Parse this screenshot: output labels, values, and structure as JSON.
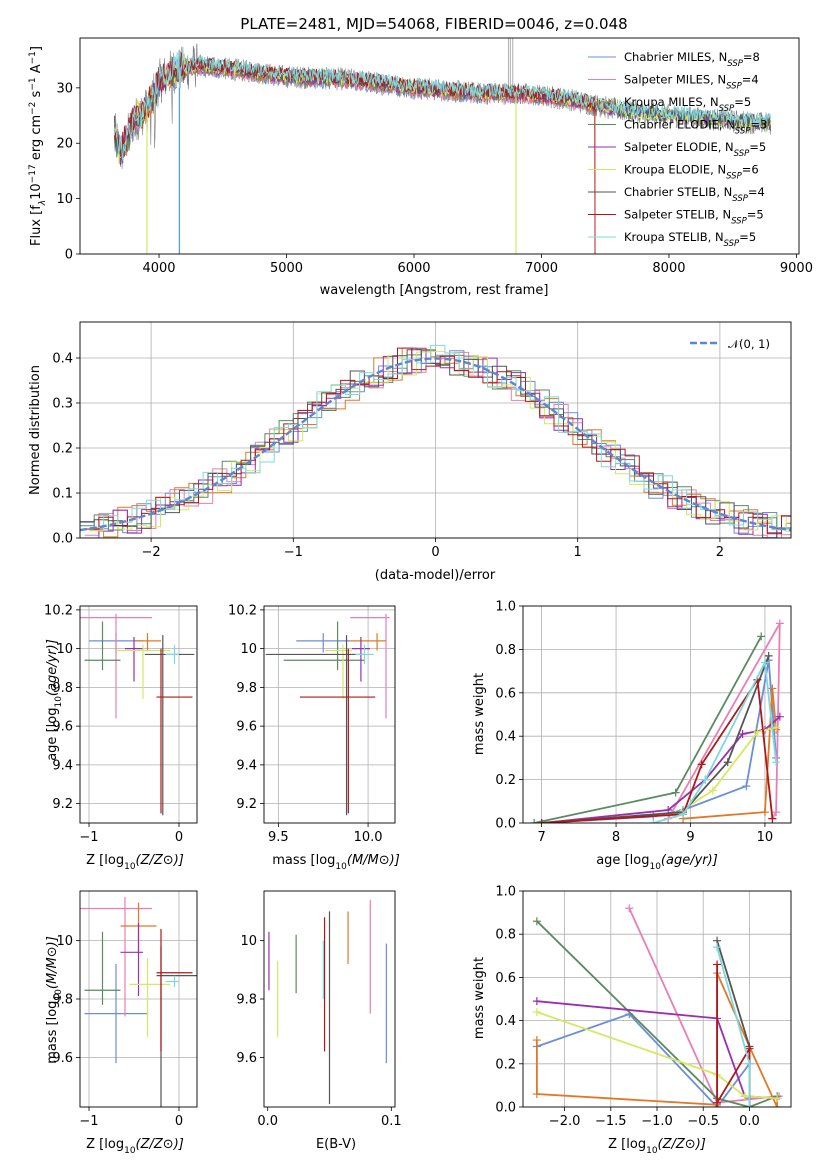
{
  "colors": {
    "Chabrier MILES": "#6a8fd8",
    "Salpeter MILES": "#e87fb4",
    "Kroupa MILES": "#e07828",
    "Chabrier ELODIE": "#5a8a60",
    "Salpeter ELODIE": "#9a2fb0",
    "Kroupa ELODIE": "#d6e860",
    "Chabrier STELIB": "#555555",
    "Salpeter STELIB": "#b01818",
    "Kroupa STELIB": "#7ed8e0"
  },
  "chart_data": [
    {
      "id": "spectrum",
      "type": "line",
      "title": "PLATE=2481, MJD=54068, FIBERID=0046, z=0.048",
      "xlabel": "wavelength [Angstrom, rest frame]",
      "ylabel_parts": [
        "Flux [f",
        "λ",
        "10",
        "−17",
        " erg cm",
        "−2",
        " s",
        "−1",
        " A",
        "−1",
        "]"
      ],
      "xlim": [
        3380,
        9020
      ],
      "ylim": [
        0,
        39
      ],
      "xticks": [
        4000,
        5000,
        6000,
        7000,
        8000,
        9000
      ],
      "yticks": [
        0,
        10,
        20,
        30
      ],
      "legend_location": "upper right",
      "legend": [
        {
          "name": "Chabrier MILES",
          "n": "8"
        },
        {
          "name": "Salpeter MILES",
          "n": "4"
        },
        {
          "name": "Kroupa MILES",
          "n": "5"
        },
        {
          "name": "Chabrier ELODIE",
          "n": "3"
        },
        {
          "name": "Salpeter ELODIE",
          "n": "5"
        },
        {
          "name": "Kroupa ELODIE",
          "n": "6"
        },
        {
          "name": "Chabrier STELIB",
          "n": "4"
        },
        {
          "name": "Salpeter STELIB",
          "n": "5"
        },
        {
          "name": "Kroupa STELIB",
          "n": "5"
        }
      ],
      "legend_n_label": "N",
      "legend_n_sub": "SSP",
      "continuum": {
        "x": [
          3650,
          3700,
          3800,
          3900,
          4000,
          4100,
          4200,
          4300,
          4500,
          4700,
          5000,
          5500,
          6000,
          6500,
          6800,
          7000,
          7200,
          7400,
          7600,
          8000,
          8500,
          8800
        ],
        "y": [
          22,
          18,
          24,
          26,
          31,
          33,
          33.5,
          34,
          33.5,
          33,
          32,
          31.5,
          30,
          29,
          29,
          28.5,
          28,
          27,
          26,
          25,
          24,
          23.5
        ]
      }
    },
    {
      "id": "residuals",
      "type": "histogram",
      "xlabel": "(data-model)/error",
      "ylabel": "Normed distribution",
      "xlim": [
        -2.5,
        2.5
      ],
      "ylim": [
        0,
        0.48
      ],
      "xticks": [
        -2,
        -1,
        0,
        1,
        2
      ],
      "xticklabels": [
        "−2",
        "−1",
        "0",
        "1",
        "2"
      ],
      "yticks": [
        0.0,
        0.1,
        0.2,
        0.3,
        0.4
      ],
      "yticklabels": [
        "0.0",
        "0.1",
        "0.2",
        "0.3",
        "0.4"
      ],
      "grid": true,
      "legend_location": "upper right",
      "reference_curve": {
        "label": "𝒩(0, 1)",
        "mean": 0,
        "sigma": 1,
        "style": "dashed",
        "color": "#5b86d6"
      }
    },
    {
      "id": "age-vs-Z",
      "type": "errorbar",
      "xlabel": "Z [log10(Z/Z⊙)]",
      "ylabel": "age  [log10(age/yr)]",
      "xlim": [
        -1.1,
        0.2
      ],
      "ylim": [
        9.1,
        10.22
      ],
      "xticks": [
        -1,
        0
      ],
      "xticklabels": [
        "−1",
        "0"
      ],
      "yticks": [
        9.2,
        9.4,
        9.6,
        9.8,
        10.0,
        10.2
      ],
      "grid": true,
      "points": [
        {
          "model": "Chabrier MILES",
          "x": -0.7,
          "xerr": [
            0.3,
            0.3
          ],
          "y": 10.04,
          "yerr": [
            0.06,
            0.04
          ]
        },
        {
          "model": "Salpeter MILES",
          "x": -0.7,
          "xerr": [
            0.4,
            0.4
          ],
          "y": 10.16,
          "yerr": [
            0.52,
            0.02
          ]
        },
        {
          "model": "Kroupa MILES",
          "x": -0.35,
          "xerr": [
            0.15,
            0.15
          ],
          "y": 10.04,
          "yerr": [
            0.05,
            0.04
          ]
        },
        {
          "model": "Chabrier ELODIE",
          "x": -0.85,
          "xerr": [
            0.2,
            0.2
          ],
          "y": 9.94,
          "yerr": [
            0.05,
            0.2
          ]
        },
        {
          "model": "Salpeter ELODIE",
          "x": -0.5,
          "xerr": [
            0.1,
            0.1
          ],
          "y": 10.0,
          "yerr": [
            0.17,
            0.06
          ]
        },
        {
          "model": "Kroupa ELODIE",
          "x": -0.4,
          "xerr": [
            0.3,
            0.3
          ],
          "y": 9.99,
          "yerr": [
            0.25,
            0.03
          ]
        },
        {
          "model": "Chabrier STELIB",
          "x": -0.18,
          "xerr": [
            0.2,
            0.35
          ],
          "y": 9.97,
          "yerr": [
            0.83,
            0.1
          ]
        },
        {
          "model": "Salpeter STELIB",
          "x": -0.2,
          "xerr": [
            0.05,
            0.35
          ],
          "y": 9.75,
          "yerr": [
            0.6,
            0.25
          ]
        },
        {
          "model": "Kroupa STELIB",
          "x": -0.05,
          "xerr": [
            0.1,
            0.05
          ],
          "y": 9.97,
          "yerr": [
            0.05,
            0.05
          ]
        }
      ]
    },
    {
      "id": "age-vs-mass",
      "type": "errorbar",
      "xlabel": "mass [log10(M/M⊙)]",
      "ylabel": "",
      "xlim": [
        9.42,
        10.15
      ],
      "ylim": [
        9.1,
        10.22
      ],
      "xticks": [
        9.5,
        10.0
      ],
      "xticklabels": [
        "9.5",
        "10.0"
      ],
      "yticks": [
        9.2,
        9.4,
        9.6,
        9.8,
        10.0,
        10.2
      ],
      "grid": true,
      "points": [
        {
          "model": "Chabrier MILES",
          "x": 9.75,
          "xerr": [
            0.15,
            0.15
          ],
          "y": 10.04,
          "yerr": [
            0.06,
            0.04
          ]
        },
        {
          "model": "Salpeter MILES",
          "x": 10.1,
          "xerr": [
            0.2,
            0.02
          ],
          "y": 10.16,
          "yerr": [
            0.52,
            0.02
          ]
        },
        {
          "model": "Kroupa MILES",
          "x": 10.05,
          "xerr": [
            0.15,
            0.05
          ],
          "y": 10.04,
          "yerr": [
            0.05,
            0.04
          ]
        },
        {
          "model": "Chabrier ELODIE",
          "x": 9.83,
          "xerr": [
            0.3,
            0.15
          ],
          "y": 9.94,
          "yerr": [
            0.05,
            0.2
          ]
        },
        {
          "model": "Salpeter ELODIE",
          "x": 9.96,
          "xerr": [
            0.05,
            0.05
          ],
          "y": 10.0,
          "yerr": [
            0.17,
            0.06
          ]
        },
        {
          "model": "Kroupa ELODIE",
          "x": 9.86,
          "xerr": [
            0.1,
            0.05
          ],
          "y": 9.99,
          "yerr": [
            0.25,
            0.03
          ]
        },
        {
          "model": "Chabrier STELIB",
          "x": 9.88,
          "xerr": [
            0.45,
            0.1
          ],
          "y": 9.97,
          "yerr": [
            0.83,
            0.1
          ]
        },
        {
          "model": "Salpeter STELIB",
          "x": 9.89,
          "xerr": [
            0.27,
            0.15
          ],
          "y": 9.75,
          "yerr": [
            0.6,
            0.25
          ]
        },
        {
          "model": "Kroupa STELIB",
          "x": 9.98,
          "xerr": [
            0.05,
            0.05
          ],
          "y": 9.97,
          "yerr": [
            0.05,
            0.05
          ]
        }
      ]
    },
    {
      "id": "mass-weight-vs-age",
      "type": "line",
      "xlabel": "age  [log10(age/yr)]",
      "ylabel": "mass weight",
      "xlim": [
        6.75,
        10.35
      ],
      "ylim": [
        0,
        1.0
      ],
      "xticks": [
        7,
        8,
        9,
        10
      ],
      "yticks": [
        0.0,
        0.2,
        0.4,
        0.6,
        0.8,
        1.0
      ],
      "yticklabels": [
        "0.0",
        "0.2",
        "0.4",
        "0.6",
        "0.8",
        "1.0"
      ],
      "grid": true,
      "series": [
        {
          "model": "Chabrier MILES",
          "x": [
            7.0,
            8.5,
            8.9,
            9.75,
            10.05,
            10.15
          ],
          "y": [
            0.0,
            0.03,
            0.06,
            0.17,
            0.75,
            0.3
          ]
        },
        {
          "model": "Salpeter MILES",
          "x": [
            8.7,
            10.2,
            10.15,
            10.1
          ],
          "y": [
            0.02,
            0.92,
            0.05,
            0.02
          ]
        },
        {
          "model": "Kroupa MILES",
          "x": [
            8.9,
            10.0,
            10.1,
            10.15
          ],
          "y": [
            0.02,
            0.05,
            0.62,
            0.43
          ]
        },
        {
          "model": "Chabrier ELODIE",
          "x": [
            6.9,
            8.8,
            9.95
          ],
          "y": [
            0.0,
            0.14,
            0.86
          ]
        },
        {
          "model": "Salpeter ELODIE",
          "x": [
            7.0,
            8.7,
            9.2,
            9.7,
            10.0,
            10.2
          ],
          "y": [
            0.0,
            0.06,
            0.2,
            0.41,
            0.43,
            0.49
          ]
        },
        {
          "model": "Kroupa ELODIE",
          "x": [
            7.0,
            8.8,
            9.3,
            9.9,
            10.15
          ],
          "y": [
            0.0,
            0.04,
            0.15,
            0.42,
            0.44
          ]
        },
        {
          "model": "Chabrier STELIB",
          "x": [
            7.0,
            8.9,
            9.5,
            10.05
          ],
          "y": [
            0.0,
            0.05,
            0.28,
            0.77
          ]
        },
        {
          "model": "Salpeter STELIB",
          "x": [
            7.0,
            8.9,
            9.15,
            9.9,
            10.1
          ],
          "y": [
            0.0,
            0.04,
            0.27,
            0.66,
            0.02
          ]
        },
        {
          "model": "Kroupa STELIB",
          "x": [
            8.5,
            8.9,
            9.2,
            10.0,
            10.15
          ],
          "y": [
            0.0,
            0.04,
            0.2,
            0.74,
            0.28
          ]
        }
      ]
    },
    {
      "id": "mass-vs-Z",
      "type": "errorbar",
      "xlabel": "Z [log10(Z/Z⊙)]",
      "ylabel": "mass [log10(M/M⊙)]",
      "xlim": [
        -1.1,
        0.2
      ],
      "ylim": [
        9.43,
        10.17
      ],
      "xticks": [
        -1,
        0
      ],
      "xticklabels": [
        "−1",
        "0"
      ],
      "yticks": [
        9.6,
        9.8,
        10.0
      ],
      "grid": true,
      "points": [
        {
          "model": "Chabrier MILES",
          "x": -0.7,
          "xerr": [
            0.35,
            0.35
          ],
          "y": 9.75,
          "yerr": [
            0.17,
            0.17
          ]
        },
        {
          "model": "Salpeter MILES",
          "x": -0.6,
          "xerr": [
            0.5,
            0.3
          ],
          "y": 10.11,
          "yerr": [
            0.37,
            0.04
          ]
        },
        {
          "model": "Kroupa MILES",
          "x": -0.45,
          "xerr": [
            0.2,
            0.2
          ],
          "y": 10.05,
          "yerr": [
            0.1,
            0.08
          ]
        },
        {
          "model": "Chabrier ELODIE",
          "x": -0.85,
          "xerr": [
            0.2,
            0.2
          ],
          "y": 9.83,
          "yerr": [
            0.05,
            0.2
          ]
        },
        {
          "model": "Salpeter ELODIE",
          "x": -0.45,
          "xerr": [
            0.2,
            0.05
          ],
          "y": 9.96,
          "yerr": [
            0.15,
            0.1
          ]
        },
        {
          "model": "Kroupa ELODIE",
          "x": -0.35,
          "xerr": [
            0.2,
            0.25
          ],
          "y": 9.85,
          "yerr": [
            0.18,
            0.09
          ]
        },
        {
          "model": "Chabrier STELIB",
          "x": -0.2,
          "xerr": [
            0.05,
            0.4
          ],
          "y": 9.88,
          "yerr": [
            0.45,
            0.1
          ]
        },
        {
          "model": "Salpeter STELIB",
          "x": -0.2,
          "xerr": [
            0.05,
            0.35
          ],
          "y": 9.89,
          "yerr": [
            0.27,
            0.15
          ]
        },
        {
          "model": "Kroupa STELIB",
          "x": -0.05,
          "xerr": [
            0.1,
            0.05
          ],
          "y": 9.86,
          "yerr": [
            0.02,
            0.02
          ]
        }
      ]
    },
    {
      "id": "mass-vs-EBV",
      "type": "errorbar",
      "xlabel": "E(B-V)",
      "ylabel": "",
      "xlim": [
        -0.003,
        0.103
      ],
      "ylim": [
        9.43,
        10.17
      ],
      "xticks": [
        0.0,
        0.1
      ],
      "xticklabels": [
        "0.0",
        "0.1"
      ],
      "yticks": [
        9.6,
        9.8,
        10.0
      ],
      "grid": false,
      "points": [
        {
          "model": "Chabrier MILES",
          "x": 0.096,
          "xerr": [
            0,
            0
          ],
          "y": 9.8,
          "yerr": [
            0.22,
            0.19
          ]
        },
        {
          "model": "Salpeter MILES",
          "x": 0.083,
          "xerr": [
            0,
            0
          ],
          "y": 9.95,
          "yerr": [
            0.2,
            0.19
          ]
        },
        {
          "model": "Kroupa MILES",
          "x": 0.065,
          "xerr": [
            0,
            0
          ],
          "y": 10.0,
          "yerr": [
            0.08,
            0.1
          ]
        },
        {
          "model": "Chabrier ELODIE",
          "x": 0.023,
          "xerr": [
            0,
            0
          ],
          "y": 9.92,
          "yerr": [
            0.1,
            0.1
          ]
        },
        {
          "model": "Salpeter ELODIE",
          "x": 0.001,
          "xerr": [
            0,
            0
          ],
          "y": 9.93,
          "yerr": [
            0.1,
            0.1
          ]
        },
        {
          "model": "Kroupa ELODIE",
          "x": 0.008,
          "xerr": [
            0,
            0
          ],
          "y": 9.8,
          "yerr": [
            0.13,
            0.13
          ]
        },
        {
          "model": "Chabrier STELIB",
          "x": 0.05,
          "xerr": [
            0,
            0
          ],
          "y": 9.77,
          "yerr": [
            0.33,
            0.33
          ]
        },
        {
          "model": "Salpeter STELIB",
          "x": 0.046,
          "xerr": [
            0,
            0
          ],
          "y": 9.86,
          "yerr": [
            0.24,
            0.22
          ]
        },
        {
          "model": "Kroupa STELIB",
          "x": 0.045,
          "xerr": [
            0,
            0
          ],
          "y": 9.9,
          "yerr": [
            0.1,
            0.1
          ]
        }
      ]
    },
    {
      "id": "mass-weight-vs-Z",
      "type": "line",
      "xlabel": "Z [log10(Z/Z⊙)]",
      "ylabel": "mass weight",
      "xlim": [
        -2.45,
        0.45
      ],
      "ylim": [
        0,
        1.0
      ],
      "xticks": [
        -2.0,
        -1.5,
        -1.0,
        -0.5,
        0.0
      ],
      "xticklabels": [
        "−2.0",
        "−1.5",
        "−1.0",
        "−0.5",
        "0.0"
      ],
      "yticks": [
        0.0,
        0.2,
        0.4,
        0.6,
        0.8,
        1.0
      ],
      "yticklabels": [
        "0.0",
        "0.2",
        "0.4",
        "0.6",
        "0.8",
        "1.0"
      ],
      "grid": true,
      "series": [
        {
          "model": "Chabrier MILES",
          "x": [
            -2.3,
            -1.3,
            -0.35,
            0.0,
            0.0
          ],
          "y": [
            0.28,
            0.43,
            0.0,
            0.2,
            0.04
          ]
        },
        {
          "model": "Salpeter MILES",
          "x": [
            -1.3,
            -0.35,
            0.32
          ],
          "y": [
            0.92,
            0.02,
            0.05
          ]
        },
        {
          "model": "Kroupa MILES",
          "x": [
            -2.3,
            -2.3,
            -0.35,
            -0.35,
            0.0,
            0.3,
            0.3
          ],
          "y": [
            0.31,
            0.06,
            0.01,
            0.62,
            0.28,
            0.0,
            0.04
          ]
        },
        {
          "model": "Chabrier ELODIE",
          "x": [
            -2.3,
            -0.35,
            0.0,
            0.3
          ],
          "y": [
            0.86,
            0.04,
            0.0,
            0.05
          ]
        },
        {
          "model": "Salpeter ELODIE",
          "x": [
            -2.3,
            -0.35,
            -0.05,
            0.3
          ],
          "y": [
            0.49,
            0.41,
            0.05,
            0.04
          ]
        },
        {
          "model": "Kroupa ELODIE",
          "x": [
            -2.3,
            -0.35,
            -0.05,
            0.3
          ],
          "y": [
            0.44,
            0.15,
            0.05,
            0.04
          ]
        },
        {
          "model": "Chabrier STELIB",
          "x": [
            -0.35,
            0.0,
            0.0
          ],
          "y": [
            0.77,
            0.28,
            0.0
          ]
        },
        {
          "model": "Salpeter STELIB",
          "x": [
            -0.35,
            -0.35,
            0.0,
            0.0
          ],
          "y": [
            0.66,
            0.02,
            0.27,
            0.0
          ]
        },
        {
          "model": "Kroupa STELIB",
          "x": [
            -0.35,
            0.0,
            0.0
          ],
          "y": [
            0.74,
            0.2,
            0.0
          ]
        }
      ]
    }
  ]
}
